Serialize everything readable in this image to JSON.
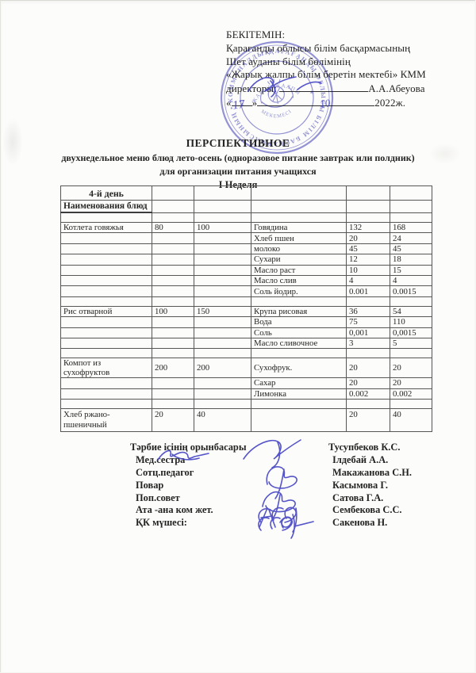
{
  "approval_block": {
    "line1": "БЕКІТЕМІН:",
    "line2": "Қарағанды облысы білім басқармасының",
    "line3": "Шет ауданы білім бөлімінің",
    "line4": "«Жарық жалпы білім беретін мектебі» КММ",
    "director_label": "директоры:",
    "director_name": "А.А.Абеуова",
    "quote_open": "«",
    "quote_close": "»",
    "year": "2022ж."
  },
  "handwritten": {
    "day": "17",
    "month": "10"
  },
  "title": {
    "line1": "ПЕРСПЕКТИВНОЕ",
    "line2": "двухнедельное меню блюд  лето-осень (одноразовое питание завтрак или полдник)",
    "line3": "для организации питания учащихся",
    "line4": "I Неделя"
  },
  "menu_table": {
    "rows": [
      {
        "cls": "r-day",
        "cells": [
          "4-й день",
          "",
          "",
          "",
          "",
          ""
        ]
      },
      {
        "cls": "r-sub",
        "cells": [
          "Наименования блюд",
          "",
          "",
          "",
          "",
          ""
        ]
      },
      {
        "cls": "r-empty",
        "cells": [
          "",
          "",
          "",
          "",
          "",
          ""
        ]
      },
      {
        "cls": "",
        "cells": [
          "Котлета говяжья",
          "80",
          "100",
          "Говядина",
          "132",
          "168"
        ]
      },
      {
        "cls": "",
        "cells": [
          "",
          "",
          "",
          "Хлеб пшен",
          "20",
          "24"
        ]
      },
      {
        "cls": "",
        "cells": [
          "",
          "",
          "",
          "молоко",
          "45",
          "45"
        ]
      },
      {
        "cls": "",
        "cells": [
          "",
          "",
          "",
          "Сухари",
          "12",
          "18"
        ]
      },
      {
        "cls": "",
        "cells": [
          "",
          "",
          "",
          "Масло раст",
          "10",
          "15"
        ]
      },
      {
        "cls": "",
        "cells": [
          "",
          "",
          "",
          "Масло слив",
          "4",
          "4"
        ]
      },
      {
        "cls": "",
        "cells": [
          "",
          "",
          "",
          "Соль йодир.",
          "0.001",
          "0.0015"
        ]
      },
      {
        "cls": "r-empty",
        "cells": [
          "",
          "",
          "",
          "",
          "",
          ""
        ]
      },
      {
        "cls": "",
        "cells": [
          "Рис отварной",
          "100",
          "150",
          "Крупа рисовая",
          "36",
          "54"
        ]
      },
      {
        "cls": "",
        "cells": [
          "",
          "",
          "",
          "Вода",
          "75",
          "110"
        ]
      },
      {
        "cls": "",
        "cells": [
          "",
          "",
          "",
          "Соль",
          "0,001",
          "0,0015"
        ]
      },
      {
        "cls": "",
        "cells": [
          "",
          "",
          "",
          "Масло сливочное",
          "3",
          "5"
        ]
      },
      {
        "cls": "r-empty",
        "cells": [
          "",
          "",
          "",
          "",
          "",
          ""
        ]
      },
      {
        "cls": "",
        "cells": [
          "Компот из сухофруктов",
          "200",
          "200",
          "Сухофрук.",
          "20",
          "20"
        ]
      },
      {
        "cls": "",
        "cells": [
          "",
          "",
          "",
          "Сахар",
          "20",
          "20"
        ]
      },
      {
        "cls": "",
        "cells": [
          "",
          "",
          "",
          "Лимонка",
          "0.002",
          "0.002"
        ]
      },
      {
        "cls": "r-empty",
        "cells": [
          "",
          "",
          "",
          "",
          "",
          ""
        ]
      },
      {
        "cls": "r-tall",
        "cells": [
          "Хлеб ржано-пшеничный",
          "20",
          "40",
          "",
          "20",
          "40"
        ]
      }
    ]
  },
  "signatures": {
    "rows": [
      {
        "role": "Тәрбие ісінің орынбасары",
        "name": "Тусупбеков К.С."
      },
      {
        "role": "Мед.сестра",
        "name": "Ілдебай А.А."
      },
      {
        "role": "Сотц.педагог",
        "name": "Макажанова С.Н."
      },
      {
        "role": "Повар",
        "name": "Касымова Г."
      },
      {
        "role": "Поп.совет",
        "name": "Сатова Г.А."
      },
      {
        "role": "Ата -ана ком  жет.",
        "name": "Сембекова С.С."
      },
      {
        "role": "ҚК мүшесі:",
        "name": "Сакенова Н."
      }
    ]
  },
  "stamp": {
    "ring_text": "ҚАРАҒАНДЫ ОБЛЫСЫ БІЛІМ БАСҚАРМАСЫНЫҢ • КОММУНАЛДЫҚ МЕМЛЕКЕТТІК МЕКЕМЕСІ • ",
    "inner_top": "ЖАРЫҚ ЖАЛПЫ",
    "inner_bottom": "МЕКЕМЕСІ"
  },
  "colors": {
    "stamp_blue": "#4646bd",
    "ink_blue": "#3f3fc2",
    "text": "#242424",
    "table_border": "#565656",
    "paper": "#fcfcfa"
  }
}
